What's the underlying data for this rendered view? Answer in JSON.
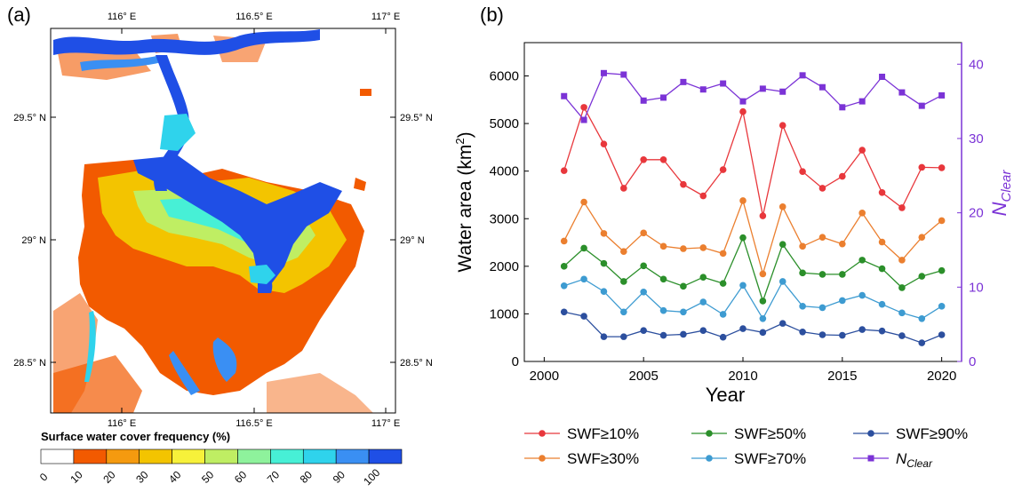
{
  "panel_a": {
    "label": "(a)",
    "lon_ticks": [
      "116° E",
      "116.5° E",
      "117° E"
    ],
    "lat_ticks": [
      "29.5° N",
      "29° N",
      "28.5° N"
    ],
    "colorbar": {
      "title": "Surface water cover frequency (%)",
      "ticks": [
        "0",
        "10",
        "20",
        "30",
        "40",
        "50",
        "60",
        "70",
        "80",
        "90",
        "100"
      ],
      "colors": [
        "#ffffff",
        "#f25a00",
        "#f59a0f",
        "#f3c400",
        "#f7f13a",
        "#bfee63",
        "#8ef29c",
        "#47f0d6",
        "#2fd3ec",
        "#3a8ff3",
        "#1f4fe6"
      ]
    }
  },
  "panel_b": {
    "label": "(b)",
    "legend": [
      "SWF≥10%",
      "SWF≥50%",
      "SWF≥90%",
      "SWF≥30%",
      "SWF≥70%"
    ],
    "nclear_legend": {
      "base": "N",
      "sub": "Clear"
    },
    "xlabel": "Year",
    "ylabel_left": "Water area (km",
    "ylabel_left_sup": "2",
    "ylabel_left_end": ")",
    "ylabel_right": {
      "base": "N",
      "sub": "Clear"
    }
  },
  "chart_data": {
    "type": "line",
    "x": [
      2001,
      2002,
      2003,
      2004,
      2005,
      2006,
      2007,
      2008,
      2009,
      2010,
      2011,
      2012,
      2013,
      2014,
      2015,
      2016,
      2017,
      2018,
      2019,
      2020
    ],
    "xlim": [
      1999,
      2021
    ],
    "xticks": [
      "2000",
      "2005",
      "2010",
      "2015",
      "2020"
    ],
    "ylim": [
      0,
      6700
    ],
    "yticks": [
      "0",
      "1000",
      "2000",
      "3000",
      "4000",
      "5000",
      "6000"
    ],
    "ylim_right": [
      0,
      42.9
    ],
    "yticks_right": [
      "0",
      "10",
      "20",
      "30",
      "40"
    ],
    "series": [
      {
        "name": "SWF≥10%",
        "color": "#e8373c",
        "marker": "circle",
        "axis": "left",
        "values": [
          4010,
          5340,
          4570,
          3640,
          4240,
          4240,
          3720,
          3480,
          4030,
          5250,
          3060,
          4960,
          3990,
          3640,
          3890,
          4440,
          3550,
          3230,
          4080,
          4070
        ]
      },
      {
        "name": "SWF≥30%",
        "color": "#eb7f2f",
        "marker": "circle",
        "axis": "left",
        "values": [
          2530,
          3350,
          2690,
          2310,
          2700,
          2420,
          2370,
          2390,
          2270,
          3380,
          1840,
          3250,
          2420,
          2610,
          2470,
          3120,
          2510,
          2130,
          2610,
          2960
        ]
      },
      {
        "name": "SWF≥50%",
        "color": "#2b8f2a",
        "marker": "circle",
        "axis": "left",
        "values": [
          2000,
          2380,
          2060,
          1680,
          2010,
          1730,
          1580,
          1770,
          1640,
          2600,
          1270,
          2460,
          1860,
          1830,
          1830,
          2130,
          1950,
          1550,
          1790,
          1910
        ]
      },
      {
        "name": "SWF≥70%",
        "color": "#3d9bd1",
        "marker": "circle",
        "axis": "left",
        "values": [
          1590,
          1730,
          1470,
          1040,
          1460,
          1070,
          1040,
          1250,
          990,
          1600,
          900,
          1680,
          1160,
          1130,
          1280,
          1390,
          1200,
          1020,
          900,
          1160
        ]
      },
      {
        "name": "SWF≥90%",
        "color": "#2c4f9e",
        "marker": "circle",
        "axis": "left",
        "values": [
          1040,
          950,
          520,
          520,
          650,
          550,
          570,
          650,
          510,
          690,
          610,
          800,
          620,
          560,
          550,
          670,
          640,
          540,
          390,
          560
        ]
      },
      {
        "name": "NClear",
        "color": "#7b33d6",
        "marker": "square",
        "axis": "right",
        "values": [
          35.7,
          32.5,
          38.8,
          38.6,
          35.1,
          35.5,
          37.6,
          36.6,
          37.4,
          35.0,
          36.7,
          36.3,
          38.5,
          36.9,
          34.2,
          35.0,
          38.3,
          36.2,
          34.4,
          35.8
        ]
      }
    ]
  }
}
